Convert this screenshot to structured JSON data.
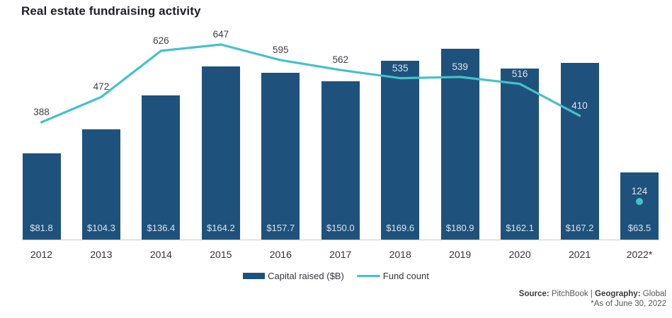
{
  "title": "Real estate fundraising activity",
  "chart_data": {
    "type": "bar",
    "subtype": "bar-line combo",
    "title": "Real estate fundraising activity",
    "categories": [
      "2012",
      "2013",
      "2014",
      "2015",
      "2016",
      "2017",
      "2018",
      "2019",
      "2020",
      "2021",
      "2022*"
    ],
    "series": [
      {
        "name": "Capital raised ($B)",
        "type": "bar",
        "color": "#1E527C",
        "values": [
          81.8,
          104.3,
          136.4,
          164.2,
          157.7,
          150.0,
          169.6,
          180.9,
          162.1,
          167.2,
          63.5
        ],
        "labels": [
          "$81.8",
          "$104.3",
          "$136.4",
          "$164.2",
          "$157.7",
          "$150.0",
          "$169.6",
          "$180.9",
          "$162.1",
          "$167.2",
          "$63.5"
        ]
      },
      {
        "name": "Fund count",
        "type": "line",
        "color": "#45C1C9",
        "values": [
          388,
          472,
          626,
          647,
          595,
          562,
          535,
          539,
          516,
          410,
          124
        ],
        "isolated_last_point": true
      }
    ],
    "axes": {
      "y_axis_visible": false,
      "x_labels_visible": true,
      "value_labels_on_points": true
    },
    "legend_position": "bottom",
    "xlabel": "",
    "ylabel": ""
  },
  "legend": {
    "items": [
      {
        "label": "Capital raised ($B)",
        "swatch": "bar",
        "color": "#1E527C"
      },
      {
        "label": "Fund count",
        "swatch": "line",
        "color": "#45C1C9"
      }
    ]
  },
  "footer": {
    "source_label": "Source:",
    "source": "PitchBook",
    "separator": "|",
    "geography_label": "Geography:",
    "geography": "Global",
    "footnote": "*As of June 30, 2022"
  },
  "colors": {
    "bar": "#1E527C",
    "line": "#45C1C9",
    "axis_line": "#CBCBCB",
    "title_text": "#1E1E2C",
    "light_label": "#DCE3EA",
    "dark_label": "#3E3E48"
  }
}
